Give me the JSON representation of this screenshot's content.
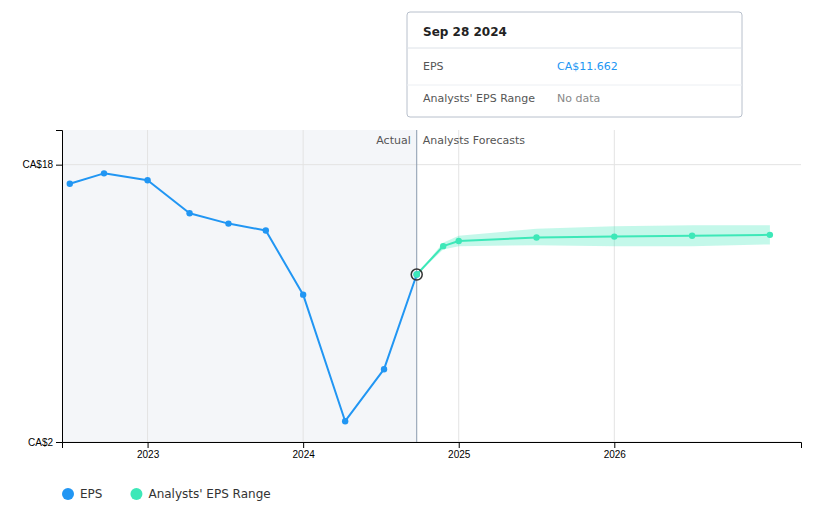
{
  "chart_data": {
    "type": "line",
    "xlim": [
      2022.45,
      2027.2
    ],
    "xticks": [
      2023,
      2024,
      2025,
      2026
    ],
    "ylim": [
      2,
      20
    ],
    "yticks": [
      {
        "value": 2,
        "label": "CA$2"
      },
      {
        "value": 18,
        "label": "CA$18"
      }
    ],
    "grid": true,
    "legend": "bottom",
    "series": [
      {
        "name": "EPS",
        "color": "#2196f3",
        "marker": "circle",
        "x": [
          2022.5,
          2022.72,
          2023.0,
          2023.27,
          2023.52,
          2023.76,
          2024.0,
          2024.27,
          2024.52,
          2024.73
        ],
        "values": [
          16.9,
          17.5,
          17.1,
          15.2,
          14.6,
          14.2,
          10.5,
          3.2,
          6.2,
          11.662
        ]
      },
      {
        "name": "Analysts' EPS Range",
        "color": "#3de8b8",
        "marker": "circle",
        "x": [
          2024.73,
          2024.9,
          2025.0,
          2025.5,
          2026.0,
          2026.5,
          2027.0
        ],
        "values": [
          11.662,
          13.3,
          13.6,
          13.8,
          13.85,
          13.9,
          13.95
        ],
        "upper": [
          11.662,
          13.5,
          13.9,
          14.3,
          14.45,
          14.5,
          14.5
        ],
        "lower": [
          11.662,
          13.1,
          13.3,
          13.35,
          13.3,
          13.3,
          13.4
        ]
      }
    ],
    "annotations": [
      {
        "x": 2024.73,
        "left_label": "Actual",
        "right_label": "Analysts Forecasts"
      }
    ],
    "tooltip": {
      "title": "Sep 28 2024",
      "x": 2024.73,
      "rows": [
        {
          "label": "EPS",
          "value": 11.662,
          "value_label": "CA$11.662"
        },
        {
          "label": "Analysts' EPS Range",
          "value_label": "No data"
        }
      ]
    }
  }
}
